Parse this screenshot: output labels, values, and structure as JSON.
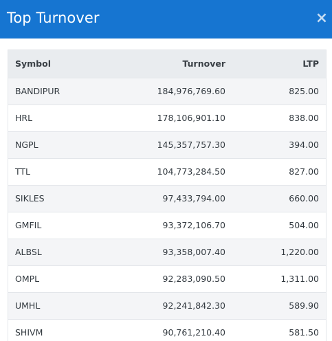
{
  "dialog": {
    "title": "Top Turnover",
    "close_icon": "×"
  },
  "table": {
    "headers": {
      "symbol": "Symbol",
      "turnover": "Turnover",
      "ltp": "LTP"
    },
    "rows": [
      {
        "symbol": "BANDIPUR",
        "turnover": "184,976,769.60",
        "ltp": "825.00"
      },
      {
        "symbol": "HRL",
        "turnover": "178,106,901.10",
        "ltp": "838.00"
      },
      {
        "symbol": "NGPL",
        "turnover": "145,357,757.30",
        "ltp": "394.00"
      },
      {
        "symbol": "TTL",
        "turnover": "104,773,284.50",
        "ltp": "827.00"
      },
      {
        "symbol": "SIKLES",
        "turnover": "97,433,794.00",
        "ltp": "660.00"
      },
      {
        "symbol": "GMFIL",
        "turnover": "93,372,106.70",
        "ltp": "504.00"
      },
      {
        "symbol": "ALBSL",
        "turnover": "93,358,007.40",
        "ltp": "1,220.00"
      },
      {
        "symbol": "OMPL",
        "turnover": "92,283,090.50",
        "ltp": "1,311.00"
      },
      {
        "symbol": "UMHL",
        "turnover": "92,241,842.30",
        "ltp": "589.90"
      },
      {
        "symbol": "SHIVM",
        "turnover": "90,761,210.40",
        "ltp": "581.50"
      }
    ]
  },
  "colors": {
    "header_bg": "#1675d1",
    "table_header_bg": "#e9ecef",
    "row_stripe_bg": "#f4f5f7"
  }
}
